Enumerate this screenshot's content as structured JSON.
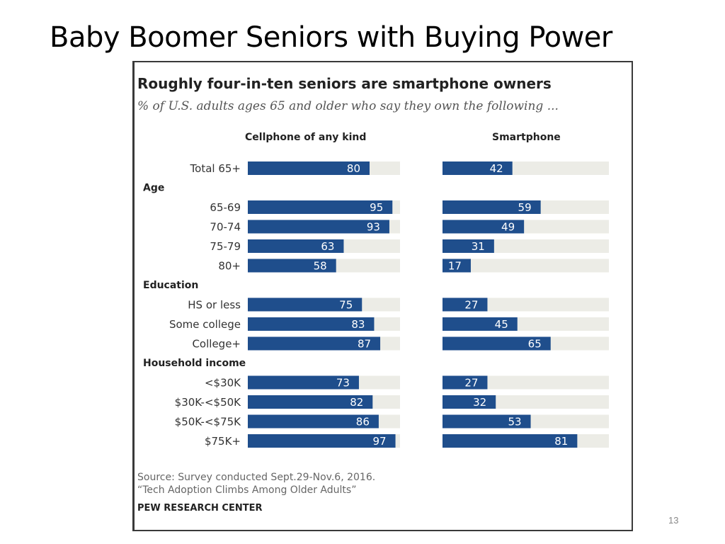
{
  "slide": {
    "title": "Baby Boomer Seniors with Buying Power",
    "page_number": "13"
  },
  "chart_data": {
    "type": "bar",
    "orientation": "horizontal",
    "title": "Roughly four-in-ten seniors are smartphone owners",
    "subtitle": "% of U.S. adults ages 65 and older who say they own the following ...",
    "xlim": [
      0,
      100
    ],
    "bar_color": "#1f4e8c",
    "track_color": "#ececE6",
    "series": [
      {
        "name": "Cellphone of any kind",
        "values": [
          80,
          95,
          93,
          63,
          58,
          75,
          83,
          87,
          73,
          82,
          86,
          97
        ]
      },
      {
        "name": "Smartphone",
        "values": [
          42,
          59,
          49,
          31,
          17,
          27,
          45,
          65,
          27,
          32,
          53,
          81
        ]
      }
    ],
    "rows": [
      {
        "type": "row",
        "label": "Total 65+"
      },
      {
        "type": "group",
        "label": "Age"
      },
      {
        "type": "row",
        "label": "65-69"
      },
      {
        "type": "row",
        "label": "70-74"
      },
      {
        "type": "row",
        "label": "75-79"
      },
      {
        "type": "row",
        "label": "80+"
      },
      {
        "type": "group",
        "label": "Education"
      },
      {
        "type": "row",
        "label": "HS or less"
      },
      {
        "type": "row",
        "label": "Some college"
      },
      {
        "type": "row",
        "label": "College+"
      },
      {
        "type": "group",
        "label": "Household income"
      },
      {
        "type": "row",
        "label": "<$30K"
      },
      {
        "type": "row",
        "label": "$30K-<$50K"
      },
      {
        "type": "row",
        "label": "$50K-<$75K"
      },
      {
        "type": "row",
        "label": "$75K+"
      }
    ],
    "source_line1": "Source: Survey conducted Sept.29-Nov.6, 2016.",
    "source_line2": "“Tech Adoption Climbs Among Older Adults”",
    "credit": "PEW RESEARCH CENTER"
  }
}
